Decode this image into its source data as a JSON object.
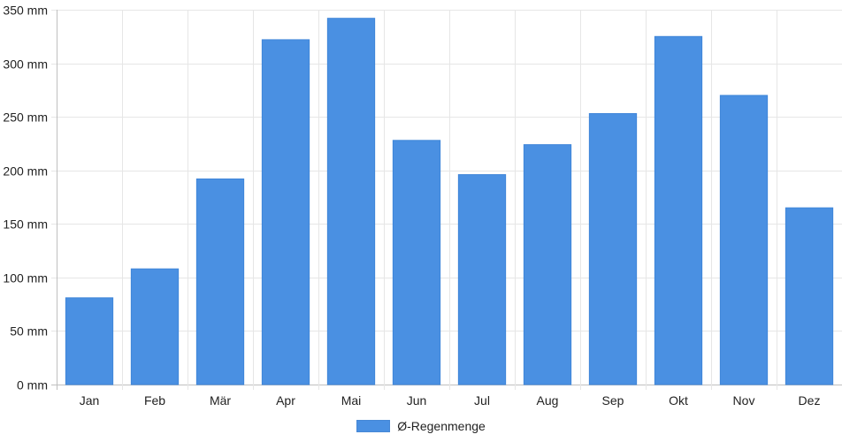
{
  "chart_data": {
    "type": "bar",
    "categories": [
      "Jan",
      "Feb",
      "Mär",
      "Apr",
      "Mai",
      "Jun",
      "Jul",
      "Aug",
      "Sep",
      "Okt",
      "Nov",
      "Dez"
    ],
    "series": [
      {
        "name": "Ø-Regenmenge",
        "values": [
          81,
          108,
          192,
          322,
          342,
          228,
          196,
          224,
          253,
          325,
          270,
          165
        ],
        "color": "#4a90e2"
      }
    ],
    "ylim": [
      0,
      350
    ],
    "yticks": [
      "0 mm",
      "50 mm",
      "100 mm",
      "150 mm",
      "200 mm",
      "250 mm",
      "300 mm",
      "350 mm"
    ],
    "grid": true,
    "legend_position": "bottom-center"
  }
}
